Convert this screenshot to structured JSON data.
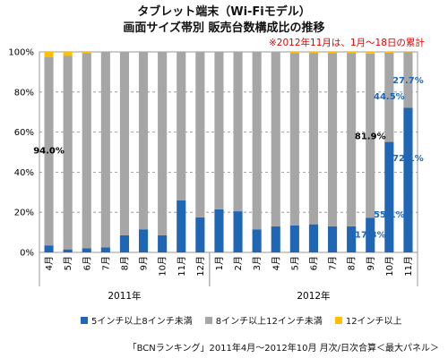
{
  "chart_data": {
    "type": "bar",
    "stacked": true,
    "title": "タブレット端末（Wi-Fiモデル）",
    "subtitle": "画面サイズ帯別 販売台数構成比の推移",
    "note": "※2012年11月は、1月～18日の累計",
    "source": "「BCNランキング」2011年4月～2012年10月 月次/日次合算＜最大パネル＞",
    "ylim": [
      0,
      100
    ],
    "yticks": [
      "0%",
      "20%",
      "40%",
      "60%",
      "80%",
      "100%"
    ],
    "categories": [
      "4月",
      "5月",
      "6月",
      "7月",
      "8月",
      "9月",
      "10月",
      "11月",
      "12月",
      "1月",
      "2月",
      "3月",
      "4月",
      "5月",
      "6月",
      "7月",
      "8月",
      "9月",
      "10月",
      "11月"
    ],
    "groups": [
      {
        "label": "2011年",
        "start": 0,
        "end": 8
      },
      {
        "label": "2012年",
        "start": 9,
        "end": 19
      }
    ],
    "series": [
      {
        "name": "5インチ以上8インチ未満",
        "color": "#1f66b4",
        "values": [
          3.5,
          1.5,
          2.0,
          2.5,
          8.5,
          11.5,
          8.5,
          26.0,
          17.5,
          21.5,
          20.5,
          11.5,
          13.0,
          13.5,
          14.0,
          13.0,
          13.0,
          17.3,
          55.1,
          72.1
        ]
      },
      {
        "name": "8インチ以上12インチ未満",
        "color": "#a6a6a6",
        "values": [
          94.0,
          96.5,
          97.5,
          97.5,
          91.5,
          88.5,
          91.5,
          74.0,
          82.5,
          78.5,
          79.5,
          88.5,
          87.0,
          86.0,
          85.5,
          86.5,
          86.5,
          81.9,
          44.5,
          27.7
        ]
      },
      {
        "name": "12インチ以上",
        "color": "#ffc000",
        "values": [
          2.5,
          2.0,
          0.5,
          0.0,
          0.0,
          0.0,
          0.0,
          0.0,
          0.0,
          0.0,
          0.0,
          0.0,
          0.0,
          0.5,
          0.5,
          0.5,
          0.5,
          0.8,
          0.4,
          0.2
        ]
      }
    ],
    "annotations": [
      {
        "text": "94.0%",
        "index": 0,
        "y": 51,
        "color": "#000000"
      },
      {
        "text": "81.9%",
        "index": 17,
        "y": 58,
        "color": "#000000"
      },
      {
        "text": "17.3%",
        "index": 17,
        "y": 9,
        "color": "#1f66b4"
      },
      {
        "text": "44.5%",
        "index": 18,
        "y": 78,
        "color": "#1f66b4"
      },
      {
        "text": "55.1%",
        "index": 18,
        "y": 19,
        "color": "#1f66b4"
      },
      {
        "text": "27.7%",
        "index": 19,
        "y": 86,
        "color": "#1f66b4"
      },
      {
        "text": "72.1%",
        "index": 19,
        "y": 47,
        "color": "#1f66b4"
      }
    ]
  }
}
